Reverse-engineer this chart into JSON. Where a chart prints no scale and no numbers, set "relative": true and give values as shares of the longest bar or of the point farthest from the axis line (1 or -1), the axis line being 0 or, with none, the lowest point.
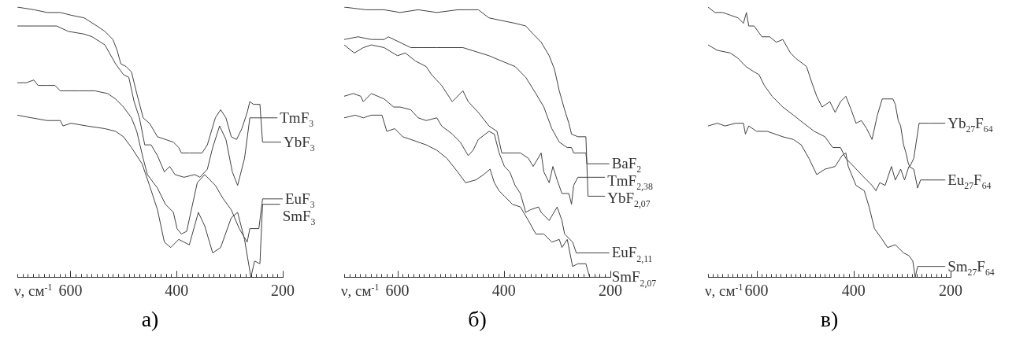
{
  "chart_data": [
    {
      "type": "line",
      "title": "а)",
      "xlabel": "ν, см$^{-1}$",
      "relative": true,
      "xlim": [
        700,
        200
      ],
      "xticks": [
        {
          "value": 700,
          "label": null
        },
        {
          "value": 690,
          "label": null
        },
        {
          "value": 680,
          "label": null
        },
        {
          "value": 670,
          "label": null
        },
        {
          "value": 660,
          "label": null
        },
        {
          "value": 650,
          "label": null
        },
        {
          "value": 640,
          "label": null
        },
        {
          "value": 630,
          "label": null
        },
        {
          "value": 620,
          "label": null
        },
        {
          "value": 610,
          "label": null
        },
        600,
        {
          "value": 590,
          "label": null
        },
        {
          "value": 580,
          "label": null
        },
        {
          "value": 570,
          "label": null
        },
        {
          "value": 560,
          "label": null
        },
        {
          "value": 550,
          "label": null
        },
        {
          "value": 540,
          "label": null
        },
        {
          "value": 530,
          "label": null
        },
        {
          "value": 520,
          "label": null
        },
        {
          "value": 510,
          "label": null
        },
        {
          "value": 500,
          "label": null
        },
        {
          "value": 490,
          "label": null
        },
        {
          "value": 480,
          "label": null
        },
        {
          "value": 470,
          "label": null
        },
        {
          "value": 460,
          "label": null
        },
        {
          "value": 450,
          "label": null
        },
        {
          "value": 440,
          "label": null
        },
        {
          "value": 430,
          "label": null
        },
        {
          "value": 420,
          "label": null
        },
        {
          "value": 410,
          "label": null
        },
        400,
        {
          "value": 390,
          "label": null
        },
        {
          "value": 380,
          "label": null
        },
        {
          "value": 370,
          "label": null
        },
        {
          "value": 360,
          "label": null
        },
        {
          "value": 350,
          "label": null
        },
        {
          "value": 340,
          "label": null
        },
        {
          "value": 330,
          "label": null
        },
        {
          "value": 320,
          "label": null
        },
        {
          "value": 310,
          "label": null
        },
        {
          "value": 300,
          "label": null
        },
        {
          "value": 290,
          "label": null
        },
        {
          "value": 280,
          "label": null
        },
        {
          "value": 270,
          "label": null
        },
        {
          "value": 260,
          "label": null
        },
        {
          "value": 250,
          "label": null
        },
        {
          "value": 240,
          "label": null
        },
        {
          "value": 230,
          "label": null
        },
        {
          "value": 220,
          "label": null
        },
        {
          "value": 210,
          "label": null
        },
        200
      ],
      "series": [
        {
          "name": "YbF$_{3}$",
          "color": "#404040",
          "x": [
            700,
            668,
            644,
            619,
            599,
            574,
            550,
            535,
            520,
            512,
            505,
            495,
            485,
            475,
            463,
            451,
            436,
            421,
            406,
            396,
            391,
            376,
            352,
            342,
            327,
            317,
            307,
            297,
            287,
            277,
            267,
            262,
            255,
            243,
            238,
            203
          ],
          "values": [
            1.0,
            0.99,
            0.98,
            0.98,
            0.97,
            0.96,
            0.93,
            0.91,
            0.88,
            0.84,
            0.79,
            0.78,
            0.76,
            0.68,
            0.59,
            0.57,
            0.52,
            0.51,
            0.5,
            0.48,
            0.46,
            0.46,
            0.46,
            0.49,
            0.59,
            0.62,
            0.59,
            0.52,
            0.51,
            0.55,
            0.61,
            0.65,
            0.64,
            0.64,
            0.5,
            0.5
          ]
        },
        {
          "name": "TmF$_{3}$",
          "color": "#404040",
          "x": [
            700,
            668,
            644,
            626,
            604,
            574,
            559,
            535,
            515,
            500,
            490,
            480,
            470,
            460,
            448,
            436,
            423,
            413,
            403,
            386,
            366,
            356,
            342,
            332,
            319,
            307,
            295,
            285,
            272,
            262,
            210
          ],
          "values": [
            0.93,
            0.93,
            0.93,
            0.93,
            0.91,
            0.9,
            0.89,
            0.86,
            0.79,
            0.75,
            0.74,
            0.65,
            0.59,
            0.49,
            0.49,
            0.45,
            0.39,
            0.41,
            0.38,
            0.37,
            0.38,
            0.37,
            0.4,
            0.48,
            0.56,
            0.51,
            0.39,
            0.34,
            0.44,
            0.59,
            0.59
          ]
        },
        {
          "name": "EuF$_{3}$",
          "color": "#404040",
          "x": [
            700,
            683,
            669,
            661,
            644,
            629,
            619,
            599,
            584,
            554,
            530,
            515,
            500,
            485,
            475,
            463,
            455,
            436,
            421,
            406,
            399,
            391,
            381,
            361,
            347,
            327,
            312,
            297,
            282,
            267,
            262,
            245,
            238,
            200
          ],
          "values": [
            0.72,
            0.72,
            0.73,
            0.71,
            0.71,
            0.71,
            0.69,
            0.69,
            0.69,
            0.69,
            0.68,
            0.66,
            0.63,
            0.59,
            0.54,
            0.44,
            0.38,
            0.33,
            0.27,
            0.24,
            0.18,
            0.16,
            0.17,
            0.35,
            0.38,
            0.34,
            0.29,
            0.25,
            0.18,
            0.13,
            0.18,
            0.18,
            0.29,
            0.29
          ]
        },
        {
          "name": "SmF$_{3}$",
          "color": "#404040",
          "x": [
            700,
            673,
            644,
            619,
            614,
            599,
            569,
            535,
            515,
            500,
            485,
            465,
            451,
            436,
            423,
            411,
            396,
            376,
            359,
            347,
            332,
            317,
            297,
            285,
            272,
            260,
            253,
            243,
            238,
            205
          ],
          "values": [
            0.6,
            0.59,
            0.58,
            0.58,
            0.56,
            0.57,
            0.56,
            0.55,
            0.54,
            0.52,
            0.48,
            0.42,
            0.34,
            0.25,
            0.13,
            0.11,
            0.14,
            0.12,
            0.24,
            0.19,
            0.09,
            0.11,
            0.22,
            0.24,
            0.14,
            0.0,
            0.06,
            0.05,
            0.27,
            0.27
          ]
        }
      ]
    },
    {
      "type": "line",
      "title": "б)",
      "xlabel": "ν, см$^{-1}$",
      "relative": true,
      "xlim": [
        700,
        200
      ],
      "xticks": [
        {
          "value": 700,
          "label": null
        },
        {
          "value": 690,
          "label": null
        },
        {
          "value": 680,
          "label": null
        },
        {
          "value": 670,
          "label": null
        },
        {
          "value": 660,
          "label": null
        },
        {
          "value": 650,
          "label": null
        },
        {
          "value": 640,
          "label": null
        },
        {
          "value": 630,
          "label": null
        },
        {
          "value": 620,
          "label": null
        },
        {
          "value": 610,
          "label": null
        },
        600,
        {
          "value": 590,
          "label": null
        },
        {
          "value": 580,
          "label": null
        },
        {
          "value": 570,
          "label": null
        },
        {
          "value": 560,
          "label": null
        },
        {
          "value": 550,
          "label": null
        },
        {
          "value": 540,
          "label": null
        },
        {
          "value": 530,
          "label": null
        },
        {
          "value": 520,
          "label": null
        },
        {
          "value": 510,
          "label": null
        },
        {
          "value": 500,
          "label": null
        },
        {
          "value": 490,
          "label": null
        },
        {
          "value": 480,
          "label": null
        },
        {
          "value": 470,
          "label": null
        },
        {
          "value": 460,
          "label": null
        },
        {
          "value": 450,
          "label": null
        },
        {
          "value": 440,
          "label": null
        },
        {
          "value": 430,
          "label": null
        },
        {
          "value": 420,
          "label": null
        },
        {
          "value": 410,
          "label": null
        },
        400,
        {
          "value": 390,
          "label": null
        },
        {
          "value": 380,
          "label": null
        },
        {
          "value": 370,
          "label": null
        },
        {
          "value": 360,
          "label": null
        },
        {
          "value": 350,
          "label": null
        },
        {
          "value": 340,
          "label": null
        },
        {
          "value": 330,
          "label": null
        },
        {
          "value": 320,
          "label": null
        },
        {
          "value": 310,
          "label": null
        },
        {
          "value": 300,
          "label": null
        },
        {
          "value": 290,
          "label": null
        },
        {
          "value": 280,
          "label": null
        },
        {
          "value": 270,
          "label": null
        },
        {
          "value": 260,
          "label": null
        },
        {
          "value": 250,
          "label": null
        },
        {
          "value": 240,
          "label": null
        },
        {
          "value": 230,
          "label": null
        },
        {
          "value": 220,
          "label": null
        },
        {
          "value": 210,
          "label": null
        },
        200
      ],
      "series": [
        {
          "name": "YbF$_{2,07}$",
          "color": "#404040",
          "x": [
            700,
            659,
            625,
            595,
            561,
            526,
            487,
            448,
            428,
            404,
            379,
            359,
            345,
            330,
            315,
            305,
            296,
            286,
            278,
            273,
            261,
            246,
            242,
            237,
            210
          ],
          "values": [
            1.0,
            0.99,
            0.99,
            0.98,
            0.99,
            0.98,
            0.99,
            0.99,
            0.96,
            0.95,
            0.94,
            0.93,
            0.9,
            0.87,
            0.82,
            0.77,
            0.69,
            0.62,
            0.57,
            0.53,
            0.52,
            0.52,
            0.3,
            0.3,
            0.3
          ]
        },
        {
          "name": "BaF$_{2}$",
          "color": "#404040",
          "x": [
            700,
            674,
            649,
            625,
            617,
            575,
            561,
            526,
            477,
            428,
            404,
            379,
            359,
            340,
            325,
            310,
            296,
            281,
            273,
            269,
            246,
            244,
            202
          ],
          "values": [
            0.88,
            0.89,
            0.88,
            0.88,
            0.89,
            0.85,
            0.85,
            0.85,
            0.85,
            0.82,
            0.8,
            0.78,
            0.74,
            0.68,
            0.63,
            0.55,
            0.5,
            0.48,
            0.48,
            0.46,
            0.46,
            0.42,
            0.42
          ]
        },
        {
          "name": "TmF$_{2,38}$",
          "color": "#404040",
          "x": [
            700,
            681,
            664,
            649,
            625,
            600,
            585,
            566,
            546,
            536,
            517,
            497,
            482,
            477,
            467,
            448,
            428,
            413,
            404,
            379,
            369,
            354,
            345,
            330,
            325,
            315,
            308,
            300,
            291,
            278,
            273,
            269,
            261,
            210
          ],
          "values": [
            0.86,
            0.83,
            0.85,
            0.86,
            0.85,
            0.82,
            0.83,
            0.8,
            0.78,
            0.75,
            0.71,
            0.65,
            0.68,
            0.69,
            0.65,
            0.61,
            0.56,
            0.54,
            0.46,
            0.46,
            0.46,
            0.44,
            0.41,
            0.46,
            0.39,
            0.35,
            0.41,
            0.36,
            0.31,
            0.31,
            0.27,
            0.34,
            0.37,
            0.37
          ]
        },
        {
          "name": "EuF$_{2,11}$",
          "color": "#404040",
          "x": [
            700,
            683,
            669,
            664,
            649,
            625,
            607,
            595,
            575,
            561,
            546,
            526,
            517,
            497,
            482,
            467,
            458,
            448,
            428,
            418,
            409,
            399,
            389,
            379,
            369,
            359,
            350,
            335,
            330,
            315,
            300,
            291,
            286,
            271,
            264,
            202
          ],
          "values": [
            0.67,
            0.68,
            0.67,
            0.65,
            0.68,
            0.66,
            0.63,
            0.63,
            0.62,
            0.59,
            0.58,
            0.59,
            0.56,
            0.53,
            0.5,
            0.45,
            0.47,
            0.51,
            0.54,
            0.53,
            0.46,
            0.41,
            0.39,
            0.34,
            0.31,
            0.24,
            0.25,
            0.26,
            0.24,
            0.21,
            0.26,
            0.21,
            0.16,
            0.13,
            0.09,
            0.09
          ]
        },
        {
          "name": "SmF$_{2,07}$",
          "color": "#404040",
          "x": [
            700,
            679,
            664,
            649,
            629,
            620,
            605,
            590,
            575,
            546,
            526,
            507,
            487,
            472,
            453,
            438,
            426,
            418,
            409,
            399,
            384,
            369,
            354,
            340,
            325,
            310,
            296,
            291,
            281,
            271,
            261,
            246,
            239,
            202
          ],
          "values": [
            0.59,
            0.6,
            0.59,
            0.6,
            0.6,
            0.54,
            0.55,
            0.52,
            0.51,
            0.49,
            0.47,
            0.44,
            0.39,
            0.35,
            0.36,
            0.38,
            0.4,
            0.35,
            0.32,
            0.3,
            0.27,
            0.26,
            0.21,
            0.16,
            0.16,
            0.13,
            0.14,
            0.11,
            0.14,
            0.04,
            0.05,
            0.05,
            0.0,
            0.0
          ]
        }
      ]
    },
    {
      "type": "line",
      "title": "в)",
      "xlabel": "ν, см$^{-1}$",
      "relative": true,
      "xlim": [
        700,
        200
      ],
      "xticks": [
        {
          "value": 700,
          "label": null
        },
        {
          "value": 690,
          "label": null
        },
        {
          "value": 680,
          "label": null
        },
        {
          "value": 670,
          "label": null
        },
        {
          "value": 660,
          "label": null
        },
        {
          "value": 650,
          "label": null
        },
        {
          "value": 640,
          "label": null
        },
        {
          "value": 630,
          "label": null
        },
        {
          "value": 620,
          "label": null
        },
        {
          "value": 610,
          "label": null
        },
        600,
        {
          "value": 590,
          "label": null
        },
        {
          "value": 580,
          "label": null
        },
        {
          "value": 570,
          "label": null
        },
        {
          "value": 560,
          "label": null
        },
        {
          "value": 550,
          "label": null
        },
        {
          "value": 540,
          "label": null
        },
        {
          "value": 530,
          "label": null
        },
        {
          "value": 520,
          "label": null
        },
        {
          "value": 510,
          "label": null
        },
        {
          "value": 500,
          "label": null
        },
        {
          "value": 490,
          "label": null
        },
        {
          "value": 480,
          "label": null
        },
        {
          "value": 470,
          "label": null
        },
        {
          "value": 460,
          "label": null
        },
        {
          "value": 450,
          "label": null
        },
        {
          "value": 440,
          "label": null
        },
        {
          "value": 430,
          "label": null
        },
        {
          "value": 420,
          "label": null
        },
        {
          "value": 410,
          "label": null
        },
        400,
        {
          "value": 390,
          "label": null
        },
        {
          "value": 380,
          "label": null
        },
        {
          "value": 370,
          "label": null
        },
        {
          "value": 360,
          "label": null
        },
        {
          "value": 350,
          "label": null
        },
        {
          "value": 340,
          "label": null
        },
        {
          "value": 330,
          "label": null
        },
        {
          "value": 320,
          "label": null
        },
        {
          "value": 310,
          "label": null
        },
        {
          "value": 300,
          "label": null
        },
        {
          "value": 290,
          "label": null
        },
        {
          "value": 280,
          "label": null
        },
        {
          "value": 270,
          "label": null
        },
        {
          "value": 260,
          "label": null
        },
        {
          "value": 250,
          "label": null
        },
        {
          "value": 240,
          "label": null
        },
        {
          "value": 230,
          "label": null
        },
        {
          "value": 220,
          "label": null
        },
        {
          "value": 210,
          "label": null
        },
        200
      ],
      "series": [
        {
          "name": "Yb$_{27}$F$_{64}$",
          "color": "#404040",
          "x": [
            700,
            686,
            670,
            654,
            638,
            627,
            621,
            616,
            605,
            589,
            573,
            559,
            546,
            530,
            519,
            497,
            486,
            476,
            465,
            449,
            438,
            427,
            416,
            405,
            395,
            384,
            373,
            362,
            351,
            341,
            330,
            319,
            314,
            308,
            303,
            297,
            292,
            287,
            284,
            276,
            265,
            243,
            211
          ],
          "values": [
            1.0,
            0.98,
            0.98,
            0.97,
            0.96,
            0.94,
            0.98,
            0.93,
            0.93,
            0.89,
            0.89,
            0.87,
            0.88,
            0.83,
            0.81,
            0.78,
            0.72,
            0.67,
            0.63,
            0.65,
            0.61,
            0.65,
            0.67,
            0.62,
            0.57,
            0.58,
            0.55,
            0.51,
            0.6,
            0.66,
            0.66,
            0.66,
            0.64,
            0.58,
            0.56,
            0.49,
            0.46,
            0.42,
            0.41,
            0.44,
            0.57,
            0.57,
            0.57
          ]
        },
        {
          "name": "Eu$_{27}$F$_{64}$",
          "color": "#404040",
          "x": [
            700,
            681,
            654,
            638,
            622,
            605,
            595,
            584,
            568,
            546,
            524,
            503,
            481,
            459,
            443,
            427,
            416,
            405,
            384,
            362,
            354,
            346,
            335,
            322,
            314,
            303,
            295,
            286,
            276,
            268,
            262,
            211
          ],
          "values": [
            0.86,
            0.84,
            0.83,
            0.81,
            0.78,
            0.76,
            0.75,
            0.71,
            0.67,
            0.63,
            0.6,
            0.57,
            0.54,
            0.52,
            0.48,
            0.48,
            0.44,
            0.42,
            0.38,
            0.34,
            0.32,
            0.35,
            0.34,
            0.41,
            0.36,
            0.4,
            0.36,
            0.41,
            0.4,
            0.33,
            0.36,
            0.36
          ]
        },
        {
          "name": "Sm$_{27}$F$_{64}$",
          "color": "#404040",
          "x": [
            700,
            681,
            665,
            643,
            627,
            623,
            616,
            600,
            578,
            546,
            524,
            508,
            492,
            476,
            459,
            438,
            424,
            416,
            411,
            395,
            378,
            368,
            357,
            341,
            330,
            314,
            297,
            286,
            278,
            273,
            268,
            211
          ],
          "values": [
            0.56,
            0.57,
            0.56,
            0.57,
            0.57,
            0.53,
            0.56,
            0.54,
            0.54,
            0.52,
            0.51,
            0.49,
            0.44,
            0.38,
            0.4,
            0.41,
            0.45,
            0.46,
            0.41,
            0.34,
            0.32,
            0.26,
            0.18,
            0.14,
            0.11,
            0.12,
            0.09,
            0.08,
            0.06,
            0.0,
            0.04,
            0.04
          ]
        }
      ]
    }
  ]
}
